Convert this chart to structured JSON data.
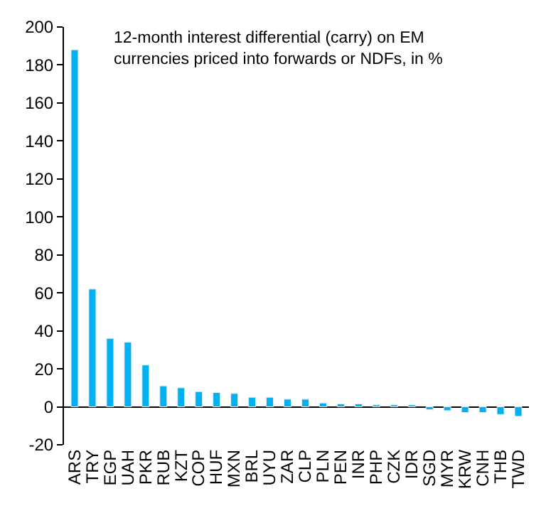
{
  "chart_data": {
    "type": "bar",
    "annotations": [
      "12-month interest differential (carry) on EM\ncurrencies priced into forwards or NDFs, in %"
    ],
    "categories": [
      "ARS",
      "TRY",
      "EGP",
      "UAH",
      "PKR",
      "RUB",
      "KZT",
      "COP",
      "HUF",
      "MXN",
      "BRL",
      "UYU",
      "ZAR",
      "CLP",
      "PLN",
      "PEN",
      "INR",
      "PHP",
      "CZK",
      "IDR",
      "SGD",
      "MYR",
      "KRW",
      "CNH",
      "THB",
      "TWD"
    ],
    "values": [
      188,
      62,
      36,
      34,
      22,
      11,
      10,
      8,
      7.5,
      7,
      5,
      5,
      4,
      4,
      2,
      1.5,
      1.5,
      1,
      1,
      1,
      -1.5,
      -2,
      -3,
      -3,
      -4,
      -5
    ],
    "color": "#00b0f0",
    "ylim": [
      -20,
      200
    ],
    "yticks": [
      -20,
      0,
      20,
      40,
      60,
      80,
      100,
      120,
      140,
      160,
      180,
      200
    ]
  }
}
